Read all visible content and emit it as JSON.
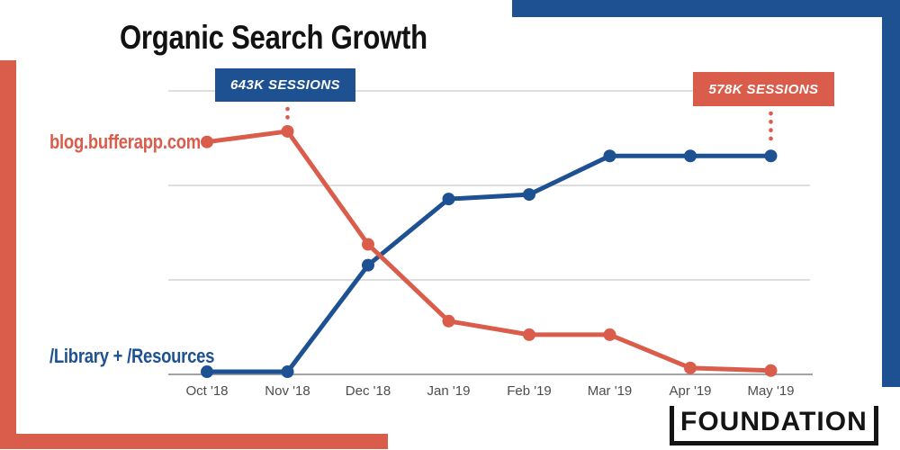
{
  "title": "Organic Search Growth",
  "colors": {
    "red": "#DA5C4B",
    "blue": "#1E5191",
    "title_text": "#121212",
    "axis_label": "#4D4D4D",
    "gridline": "#D3D3D3",
    "axis_line": "#A3A3A3",
    "callout_text": "#FFFFFF",
    "logo_text": "#141414"
  },
  "logo": {
    "text": "FOUNDATION"
  },
  "chart_data": {
    "type": "line",
    "title": "Organic Search Growth",
    "categories": [
      "Oct '18",
      "Nov '18",
      "Dec '18",
      "Jan '19",
      "Feb '19",
      "Mar '19",
      "Apr '19",
      "May '19"
    ],
    "unit": "K sessions",
    "ylim": [
      0,
      750
    ],
    "gridlines_k": [
      250,
      500,
      750
    ],
    "grid": true,
    "legend_position": "inline-left",
    "series": [
      {
        "name": "blog.bufferapp.com",
        "color": "#DA5C4B",
        "values": [
          615,
          643,
          344,
          141,
          105,
          105,
          17,
          10
        ]
      },
      {
        "name": "/Library + /Resources",
        "color": "#1E5191",
        "values": [
          7,
          7,
          289,
          464,
          476,
          578,
          578,
          578
        ]
      }
    ],
    "annotations": [
      {
        "label": "643K SESSIONS",
        "series": "blog.bufferapp.com",
        "category": "Nov '18",
        "value_k": 643,
        "box_color": "#1E5191",
        "connector_color": "#DA5C4B"
      },
      {
        "label": "578K SESSIONS",
        "series": "/Library + /Resources",
        "category": "May '19",
        "value_k": 578,
        "box_color": "#DA5C4B",
        "connector_color": "#DA5C4B"
      }
    ]
  }
}
